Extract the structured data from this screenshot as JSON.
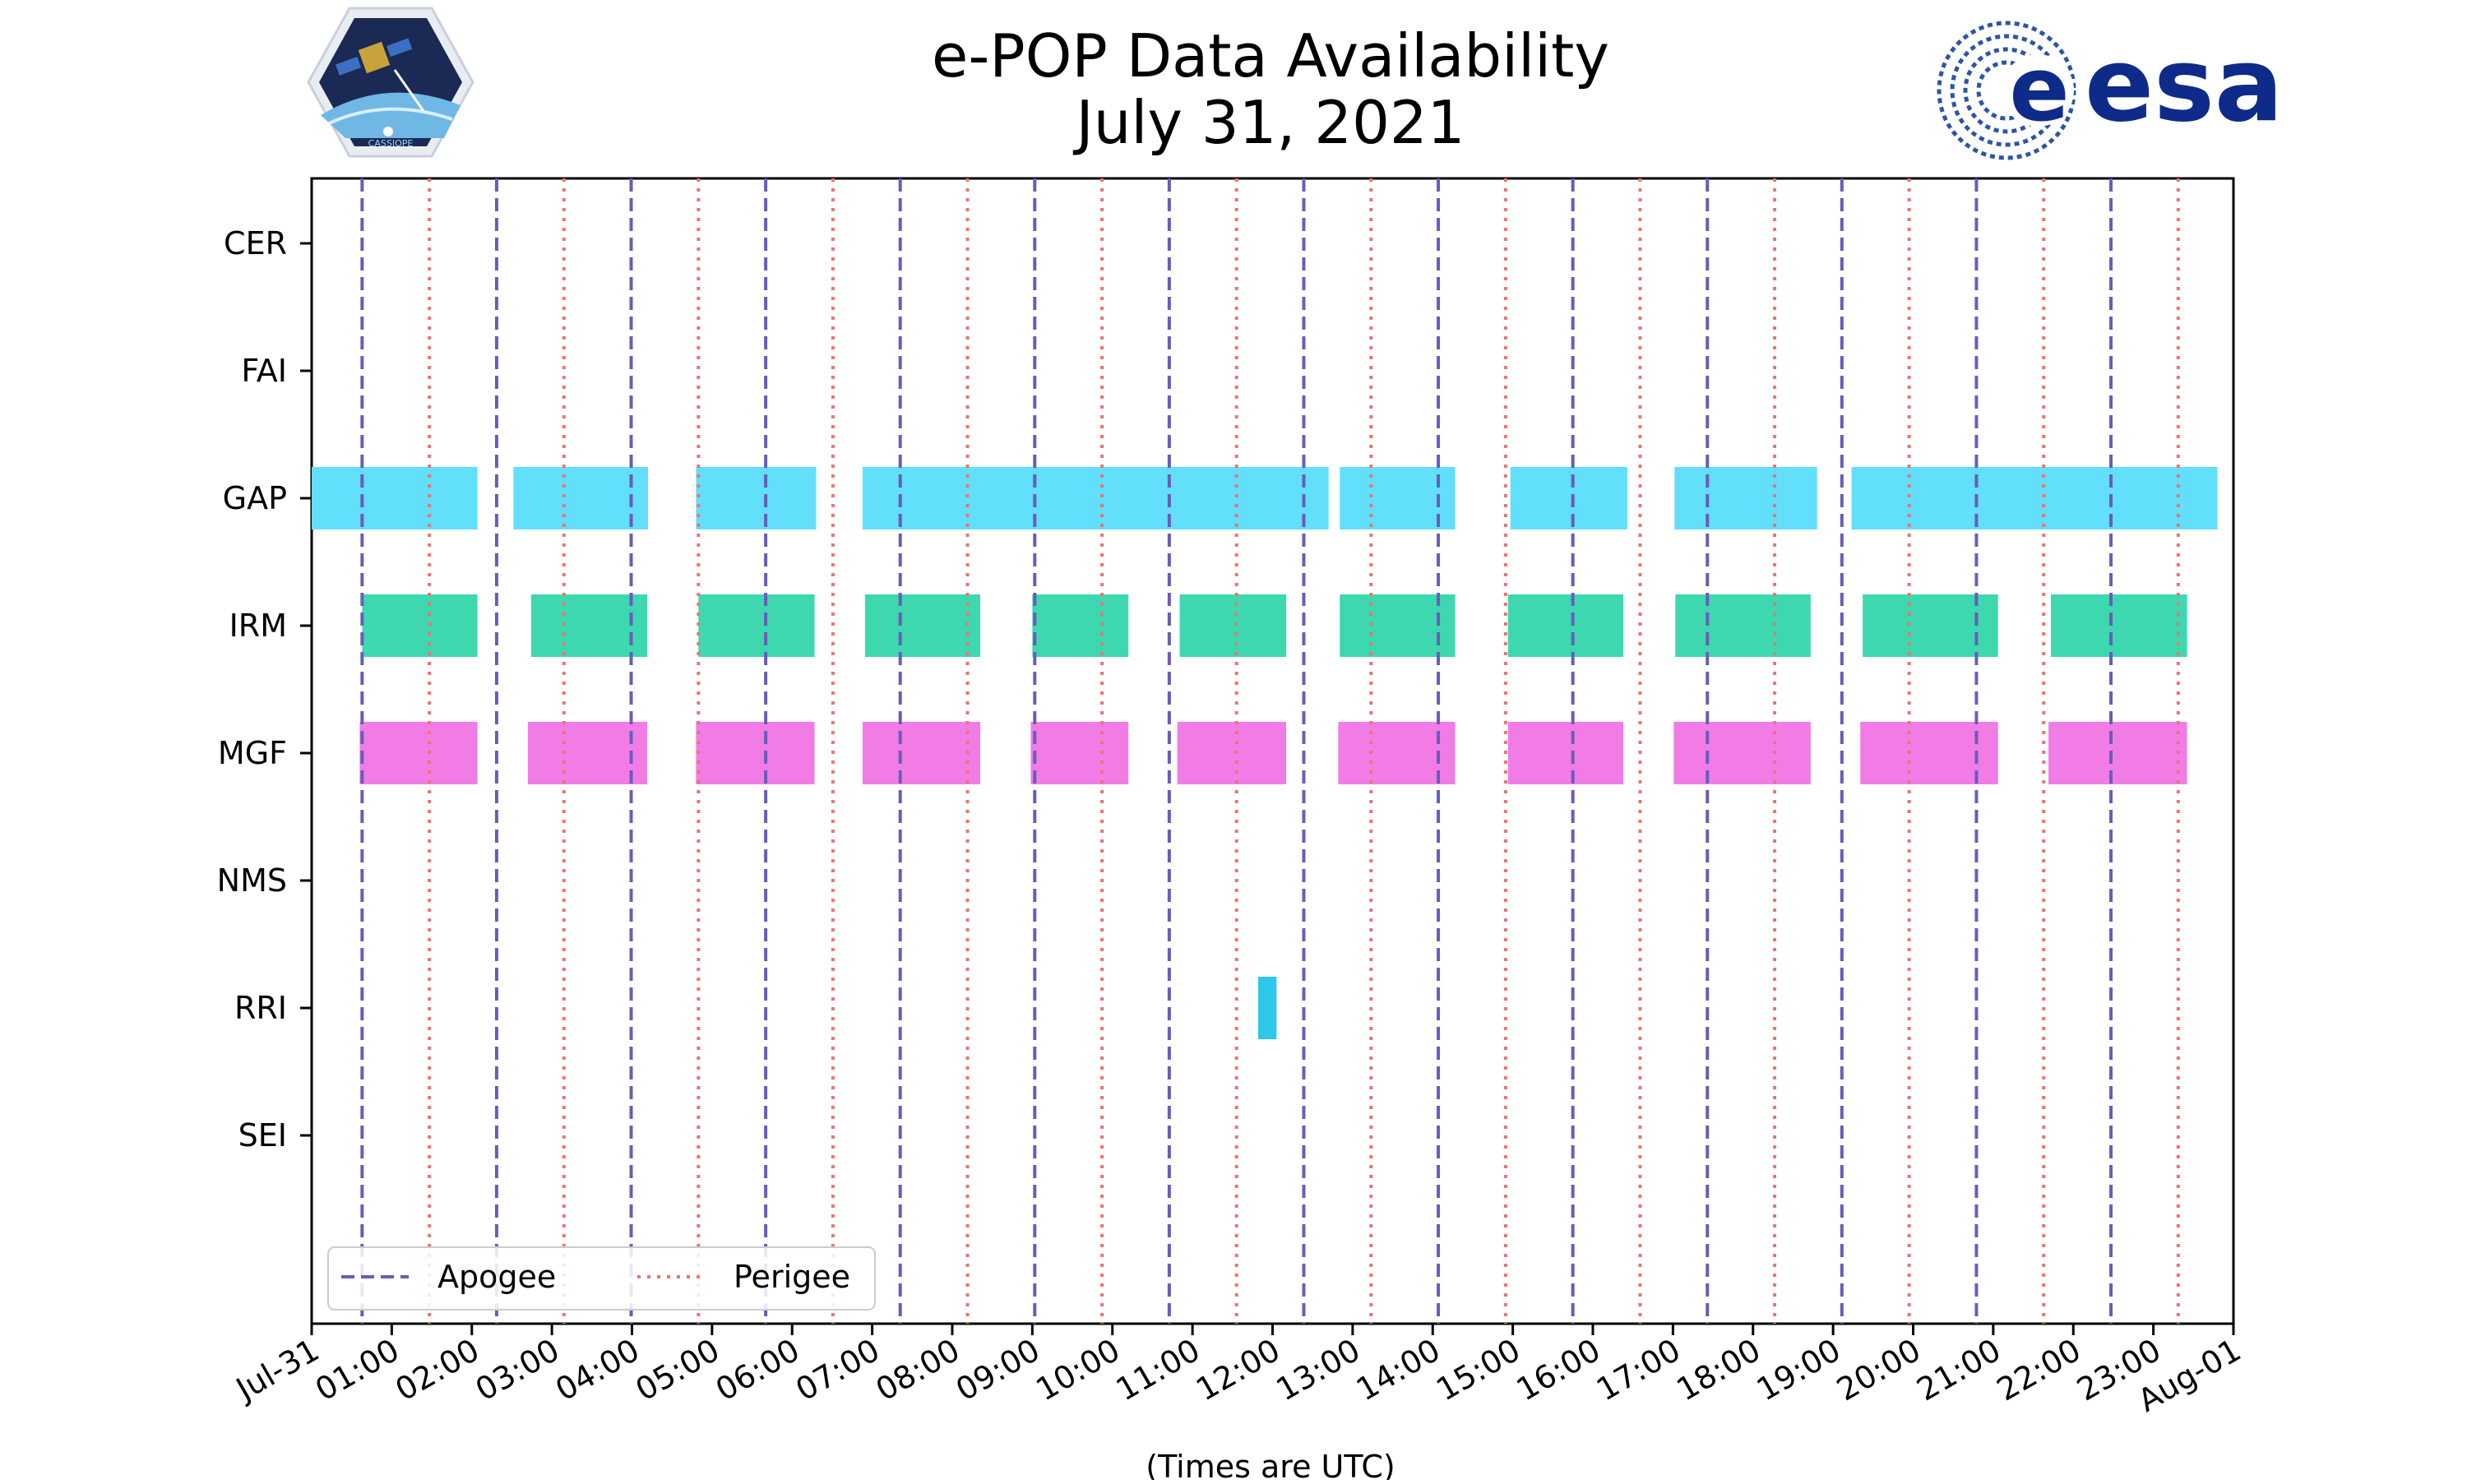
{
  "chart_data": {
    "type": "timeline",
    "title_line1": "e-POP Data Availability",
    "title_line2": "July 31, 2021",
    "xlabel": "(Times are UTC)",
    "x_unit": "hours",
    "xlim": [
      0,
      24
    ],
    "x_ticks": [
      {
        "value": 0,
        "label": "Jul-31"
      },
      {
        "value": 1,
        "label": "01:00"
      },
      {
        "value": 2,
        "label": "02:00"
      },
      {
        "value": 3,
        "label": "03:00"
      },
      {
        "value": 4,
        "label": "04:00"
      },
      {
        "value": 5,
        "label": "05:00"
      },
      {
        "value": 6,
        "label": "06:00"
      },
      {
        "value": 7,
        "label": "07:00"
      },
      {
        "value": 8,
        "label": "08:00"
      },
      {
        "value": 9,
        "label": "09:00"
      },
      {
        "value": 10,
        "label": "10:00"
      },
      {
        "value": 11,
        "label": "11:00"
      },
      {
        "value": 12,
        "label": "12:00"
      },
      {
        "value": 13,
        "label": "13:00"
      },
      {
        "value": 14,
        "label": "14:00"
      },
      {
        "value": 15,
        "label": "15:00"
      },
      {
        "value": 16,
        "label": "16:00"
      },
      {
        "value": 17,
        "label": "17:00"
      },
      {
        "value": 18,
        "label": "18:00"
      },
      {
        "value": 19,
        "label": "19:00"
      },
      {
        "value": 20,
        "label": "20:00"
      },
      {
        "value": 21,
        "label": "21:00"
      },
      {
        "value": 22,
        "label": "22:00"
      },
      {
        "value": 23,
        "label": "23:00"
      },
      {
        "value": 24,
        "label": "Aug-01"
      }
    ],
    "instruments": [
      "CER",
      "FAI",
      "GAP",
      "IRM",
      "MGF",
      "NMS",
      "RRI",
      "SEI"
    ],
    "series": [
      {
        "name": "CER",
        "color": "#5fdefa",
        "intervals": []
      },
      {
        "name": "FAI",
        "color": "#5fdefa",
        "intervals": []
      },
      {
        "name": "GAP",
        "color": "#62dffa",
        "intervals": [
          [
            0.0,
            2.07
          ],
          [
            2.52,
            4.2
          ],
          [
            4.8,
            6.3
          ],
          [
            6.88,
            12.7
          ],
          [
            12.84,
            14.28
          ],
          [
            14.97,
            16.43
          ],
          [
            17.02,
            18.8
          ],
          [
            19.23,
            23.8
          ]
        ]
      },
      {
        "name": "IRM",
        "color": "#3dd8b0",
        "intervals": [
          [
            0.63,
            2.07
          ],
          [
            2.74,
            4.19
          ],
          [
            4.83,
            6.28
          ],
          [
            6.91,
            8.35
          ],
          [
            9.0,
            10.2
          ],
          [
            10.84,
            12.17
          ],
          [
            12.84,
            14.28
          ],
          [
            14.94,
            16.38
          ],
          [
            17.03,
            18.72
          ],
          [
            19.37,
            21.06
          ],
          [
            21.72,
            23.42
          ]
        ]
      },
      {
        "name": "MGF",
        "color": "#f27ce6",
        "intervals": [
          [
            0.6,
            2.07
          ],
          [
            2.7,
            4.19
          ],
          [
            4.8,
            6.28
          ],
          [
            6.88,
            8.35
          ],
          [
            8.98,
            10.2
          ],
          [
            10.81,
            12.17
          ],
          [
            12.82,
            14.28
          ],
          [
            14.94,
            16.38
          ],
          [
            17.01,
            18.72
          ],
          [
            19.34,
            21.06
          ],
          [
            21.69,
            23.42
          ]
        ]
      },
      {
        "name": "NMS",
        "color": "#5fdefa",
        "intervals": []
      },
      {
        "name": "RRI",
        "color": "#2ec8ea",
        "intervals": [
          [
            11.82,
            12.05
          ]
        ]
      },
      {
        "name": "SEI",
        "color": "#5fdefa",
        "intervals": []
      }
    ],
    "apogee_times": [
      0.63,
      2.31,
      3.99,
      5.67,
      7.35,
      9.03,
      10.71,
      12.39,
      14.07,
      15.75,
      17.43,
      19.11,
      20.79,
      22.47
    ],
    "perigee_times": [
      1.47,
      3.15,
      4.83,
      6.51,
      8.19,
      9.87,
      11.55,
      13.23,
      14.91,
      16.59,
      18.27,
      19.95,
      21.63,
      23.31
    ],
    "legend": {
      "position": "lower-left",
      "apogee_label": "Apogee",
      "perigee_label": "Perigee",
      "apogee_color": "#6a5cbb",
      "perigee_color": "#f07272"
    }
  },
  "logos": {
    "left": {
      "name": "cassiope-logo",
      "text": "CASSIOPE"
    },
    "right": {
      "name": "esa-logo",
      "text": "esa",
      "color": "#0e2b8a"
    }
  }
}
